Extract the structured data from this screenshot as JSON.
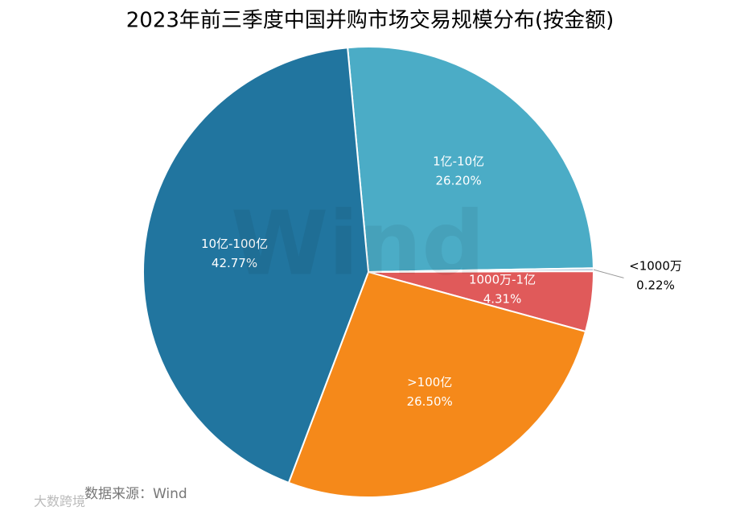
{
  "chart_data": {
    "type": "pie",
    "title": "2023年前三季度中国并购市场交易规模分布(按金额)",
    "categories": [
      "1亿-10亿",
      "<1000万",
      "1000万-1亿",
      ">100亿",
      "10亿-100亿"
    ],
    "values": [
      26.2,
      0.22,
      4.31,
      26.5,
      42.77
    ],
    "value_labels": [
      "26.20%",
      "0.22%",
      "4.31%",
      "26.50%",
      "42.77%"
    ],
    "colors": [
      "#4bacc6",
      "#b8cde0",
      "#e05a5a",
      "#f5891a",
      "#21759f"
    ],
    "watermark": "Wind",
    "source": "数据来源：Wind",
    "logo": "大数跨境"
  }
}
